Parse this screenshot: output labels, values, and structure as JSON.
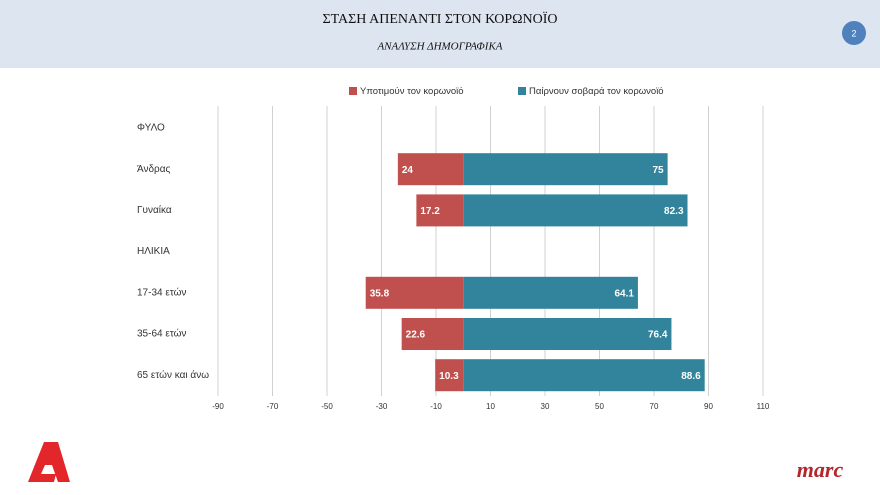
{
  "slide": {
    "page_number": 2,
    "brand": "marc"
  },
  "chart_data": {
    "type": "diverging-bar",
    "title": "ΣΤΑΣΗ ΑΠΕΝΑΝΤΙ ΣΤΟΝ ΚΟΡΩΝΟΪΟ",
    "subtitle": "ΑΝΑΛΥΣΗ ΔΗΜΟΓΡΑΦΙΚΑ",
    "categories": [
      "ΦΥΛΟ",
      "Άνδρας",
      "Γυναίκα",
      "ΗΛΙΚΙΑ",
      "17-34 ετών",
      "35-64 ετών",
      "65 ετών και άνω"
    ],
    "series": [
      {
        "name": "Υποτιμούν τον κορωνοϊό",
        "color": "#c0504d",
        "values": [
          null,
          -24,
          -17.2,
          null,
          -35.8,
          -22.6,
          -10.3
        ],
        "value_labels": [
          null,
          "24",
          "17.2",
          null,
          "35.8",
          "22.6",
          "10.3"
        ]
      },
      {
        "name": "Παίρνουν σοβαρά τον κορωνοϊό",
        "color": "#31849b",
        "values": [
          null,
          75,
          82.3,
          null,
          64.1,
          76.4,
          88.6
        ]
      }
    ],
    "xlim": [
      -90,
      110
    ],
    "xticks": [
      -90,
      -70,
      -50,
      -30,
      -10,
      10,
      30,
      50,
      70,
      90,
      110
    ],
    "grid": true
  }
}
